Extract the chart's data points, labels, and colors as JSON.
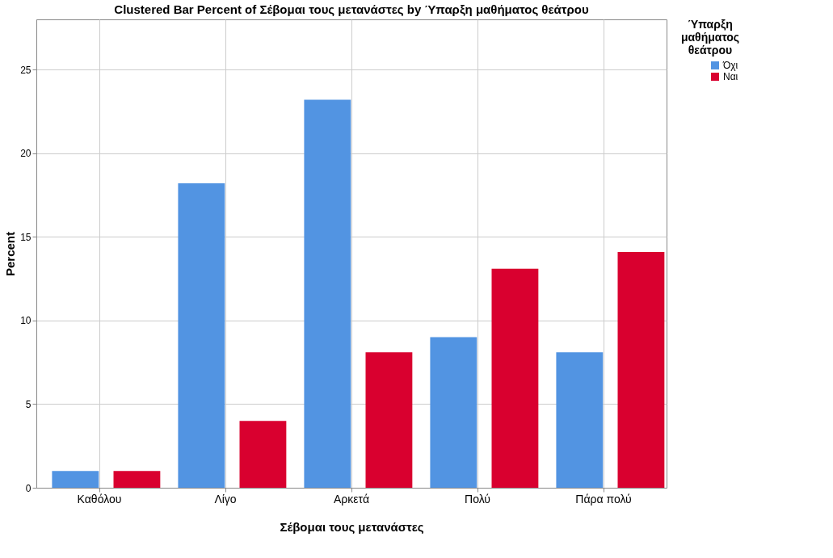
{
  "chart_data": {
    "type": "bar",
    "title": "Clustered Bar Percent of Σέβομαι τους μετανάστες by Ύπαρξη μαθήματος θεάτρου",
    "xlabel": "Σέβομαι τους μετανάστες",
    "ylabel": "Percent",
    "legend_title": "Ύπαρξη μαθήματος θεάτρου",
    "categories": [
      "Καθόλου",
      "Λίγο",
      "Αρκετά",
      "Πολύ",
      "Πάρα πολύ"
    ],
    "series": [
      {
        "name": "Όχι",
        "color": "#5294e2",
        "values": [
          1.0,
          18.2,
          23.2,
          9.0,
          8.1
        ]
      },
      {
        "name": "Ναι",
        "color": "#d9002f",
        "values": [
          1.0,
          4.0,
          8.1,
          13.1,
          14.1
        ]
      }
    ],
    "ylim": [
      0,
      28
    ],
    "yticks": [
      0,
      5,
      10,
      15,
      20,
      25
    ],
    "grid": true,
    "legend": "top right"
  }
}
